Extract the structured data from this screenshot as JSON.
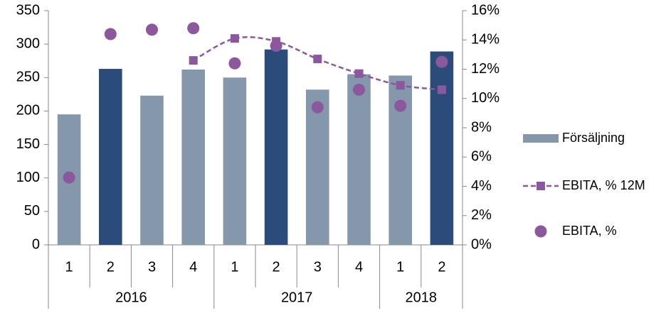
{
  "chart_data": {
    "type": "bar",
    "categories": [
      "1",
      "2",
      "3",
      "4",
      "1",
      "2",
      "3",
      "4",
      "1",
      "2"
    ],
    "x_groups": [
      {
        "label": "2016",
        "count": 4
      },
      {
        "label": "2017",
        "count": 4
      },
      {
        "label": "2018",
        "count": 2
      }
    ],
    "series": [
      {
        "name": "Försäljning",
        "type": "bar",
        "color": "#8497ab",
        "colors": [
          "#8497ab",
          "#2b4c7a",
          "#8497ab",
          "#8497ab",
          "#8497ab",
          "#2b4c7a",
          "#8497ab",
          "#8497ab",
          "#8497ab",
          "#2b4c7a"
        ],
        "values": [
          195,
          263,
          223,
          262,
          250,
          292,
          232,
          255,
          253,
          289
        ]
      },
      {
        "name": "EBITA, % 12M",
        "type": "line",
        "axis": "y2",
        "color": "#8b579d",
        "dashed": true,
        "marker": "square",
        "smooth": true,
        "values": [
          null,
          null,
          null,
          12.6,
          14.1,
          13.9,
          12.7,
          11.7,
          10.9,
          10.6
        ]
      },
      {
        "name": "EBITA, %",
        "type": "scatter",
        "axis": "y2",
        "color": "#8b579d",
        "marker": "circle",
        "values": [
          4.6,
          14.4,
          14.7,
          14.8,
          12.4,
          13.6,
          9.4,
          10.6,
          9.5,
          12.5
        ]
      }
    ],
    "ylim": [
      0,
      350
    ],
    "yticks": [
      0,
      50,
      100,
      150,
      200,
      250,
      300,
      350
    ],
    "y2lim": [
      0,
      16
    ],
    "y2ticks": [
      {
        "value": 0,
        "label": "0%"
      },
      {
        "value": 2,
        "label": "2%"
      },
      {
        "value": 4,
        "label": "4%"
      },
      {
        "value": 6,
        "label": "6%"
      },
      {
        "value": 8,
        "label": "8%"
      },
      {
        "value": 10,
        "label": "10%"
      },
      {
        "value": 12,
        "label": "12%"
      },
      {
        "value": 14,
        "label": "14%"
      },
      {
        "value": 16,
        "label": "16%"
      }
    ],
    "grid": false,
    "legend": "right"
  }
}
